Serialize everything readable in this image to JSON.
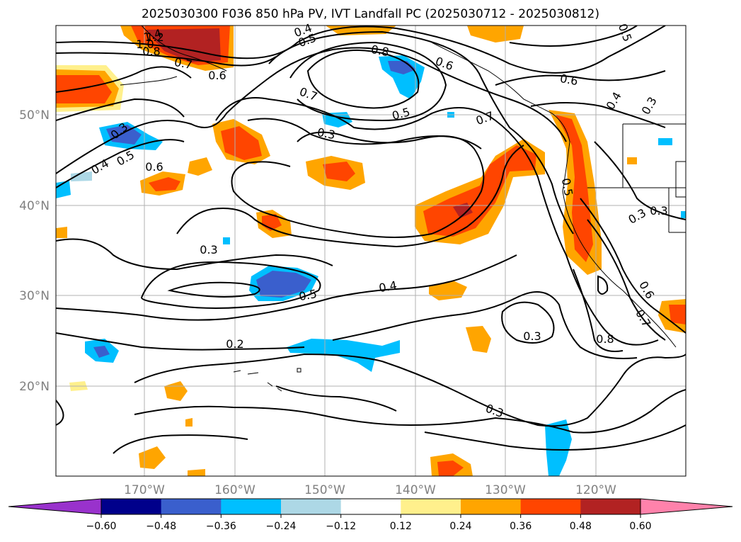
{
  "title": "2025030300 F036 850 hPa PV, IVT Landfall PC (2025030712 - 2025030812)",
  "lat_labels": [
    "50°N",
    "40°N",
    "30°N",
    "20°N"
  ],
  "lon_labels": [
    "170°W",
    "160°W",
    "150°W",
    "140°W",
    "130°W",
    "120°W"
  ],
  "colorbar": {
    "ticks": [
      "−0.60",
      "−0.48",
      "−0.36",
      "−0.24",
      "−0.12",
      "0.12",
      "0.24",
      "0.36",
      "0.48",
      "0.60"
    ],
    "colors": [
      "#9932cc",
      "#00008b",
      "#3a5fcd",
      "#00bfff",
      "#add8e6",
      "#ffffff",
      "#fff08c",
      "#ffa500",
      "#ff4500",
      "#b22222",
      "#ff82ab"
    ]
  },
  "contour_labels": [
    "1.4",
    "1.2",
    "1.0",
    "0.8",
    "0.7",
    "0.6",
    "0.4",
    "0.5",
    "0.8",
    "0.6",
    "0.5",
    "0.6",
    "0.4",
    "0.3",
    "0.7",
    "0.5",
    "0.3",
    "0.7",
    "0.3",
    "0.4",
    "0.5",
    "0.6",
    "0.5",
    "0.3",
    "0.3",
    "0.3",
    "0.5",
    "0.4",
    "0.2",
    "0.3",
    "0.8",
    "0.6",
    "0.7",
    "0.3"
  ]
}
